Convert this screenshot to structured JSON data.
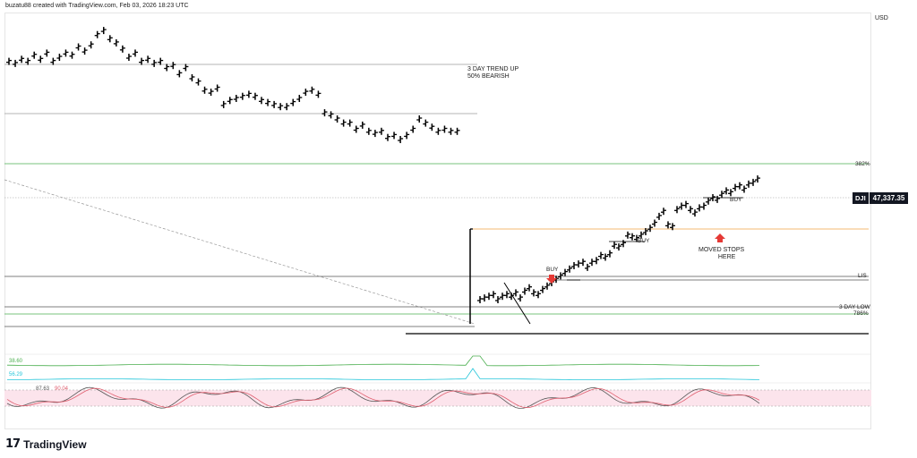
{
  "header": {
    "text": "buzatu88 created with TradingView.com, Feb 03, 2026 18:23 UTC"
  },
  "currency": "USD",
  "logo": {
    "mark": "17",
    "text": "TradingView"
  },
  "price_tag": {
    "symbol": "DJI",
    "value": "47,337.35"
  },
  "annotations": {
    "trend": [
      "3 DAY TREND UP",
      "50% BEARISH"
    ],
    "moved_stops": [
      "MOVED STOPS",
      "HERE"
    ],
    "buy1": "BUY",
    "buy2": "BUY",
    "buy3": "BUY"
  },
  "level_labels": {
    "fib382": "382%",
    "lis": "LIS",
    "three_day_low": "3 DAY LOW",
    "fib786": "786%"
  },
  "indicators": {
    "ind1_value": "38.60",
    "ind2_value": "56.29",
    "stoch_k": "87.63",
    "stoch_d": "90.04"
  },
  "colors": {
    "bars": "#000000",
    "green_level": "#4caf50",
    "orange_level": "#f0a040",
    "ind1": "#4caf50",
    "ind2": "#26c6da",
    "stoch_k": "#555555",
    "stoch_d": "#e06070",
    "stoch_band": "#fce4ec",
    "arrow": "#e53935"
  },
  "chart_data": {
    "type": "ohlc",
    "series": [
      {
        "values": [
          18,
          17,
          19,
          18,
          21,
          19,
          22,
          18,
          20,
          22,
          21,
          25,
          23,
          26,
          31,
          33,
          29,
          27,
          24,
          20,
          22,
          18,
          19,
          17,
          18,
          15,
          16,
          12,
          15,
          10,
          8,
          4,
          3,
          5,
          -3,
          -1,
          0,
          1,
          2,
          1,
          -1,
          -2,
          -3,
          -4,
          -4,
          -2,
          0,
          3,
          4,
          2,
          -7,
          -8,
          -10,
          -12,
          -12,
          -15,
          -13,
          -16,
          -17,
          -16,
          -19,
          -18,
          -20,
          -18,
          -15,
          -10,
          -12,
          -14,
          -16,
          -15,
          -16,
          -16
        ]
      },
      {
        "values": [
          -50,
          -49,
          -48,
          -47,
          -50,
          -48,
          -47,
          -48,
          -46,
          -49,
          -45,
          -43,
          -46,
          -47,
          -44,
          -42,
          -40,
          -38,
          -36,
          -34,
          -32,
          -30,
          -29,
          -28,
          -31,
          -28,
          -27,
          -24,
          -25,
          -23,
          -18,
          -19,
          -17,
          -12,
          -13,
          -14,
          -12,
          -10,
          -8,
          -5,
          -1,
          2,
          -6,
          -7,
          3,
          5,
          6,
          3,
          1,
          4,
          5,
          8,
          10,
          9,
          12,
          14,
          13,
          16,
          17,
          15,
          18,
          19,
          21
        ]
      }
    ]
  }
}
